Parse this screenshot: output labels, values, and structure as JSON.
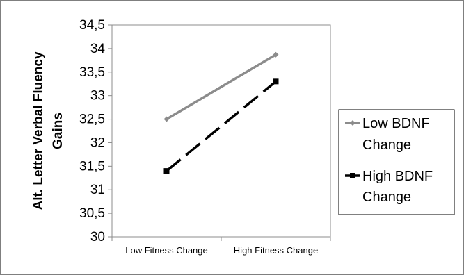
{
  "chart_data": {
    "type": "line",
    "categories": [
      "Low Fitness Change",
      "High Fitness Change"
    ],
    "ylabel_lines": [
      "Alt. Letter Verbal Fluency",
      "Gains"
    ],
    "ylim": [
      30,
      34.5
    ],
    "ytick_values": [
      30,
      30.5,
      31,
      31.5,
      32,
      32.5,
      33,
      33.5,
      34,
      34.5
    ],
    "ytick_labels": [
      "30",
      "30,5",
      "31",
      "31,5",
      "32",
      "32,5",
      "33",
      "33,5",
      "34",
      "34,5"
    ],
    "grid": false,
    "legend_position": "right",
    "series": [
      {
        "name_lines": [
          "Low BDNF",
          "Change"
        ],
        "values": [
          32.5,
          33.87
        ],
        "color": "#8c8c8c",
        "line_style": "solid",
        "marker": "diamond"
      },
      {
        "name_lines": [
          "High BDNF",
          "Change"
        ],
        "values": [
          31.4,
          33.3
        ],
        "color": "#000000",
        "line_style": "dashed",
        "marker": "square"
      }
    ]
  }
}
